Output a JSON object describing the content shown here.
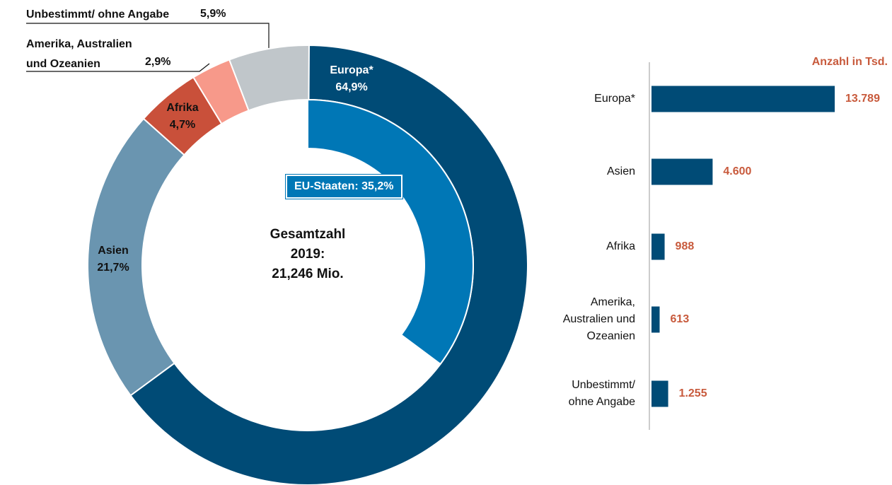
{
  "chart_data": [
    {
      "type": "pie",
      "categories": [
        "Europa*",
        "Asien",
        "Afrika",
        "Amerika, Australien\nund Ozeanien",
        "Unbestimmt/ ohne Angabe"
      ],
      "values": [
        64.9,
        21.7,
        4.7,
        2.9,
        5.9
      ],
      "value_labels": [
        "64,9%",
        "21,7%",
        "4,7%",
        "2,9%",
        "5,9%"
      ],
      "colors": [
        "#004b76",
        "#6a95b0",
        "#c9503a",
        "#f7998a",
        "#c0c6ca"
      ],
      "inner_series": {
        "values": [
          35.2
        ],
        "value_labels": [
          "EU-Staaten: 35,2%"
        ],
        "color": "#0077b6"
      },
      "center_label": [
        "Gesamtzahl",
        "2019:",
        "21,246 Mio."
      ]
    },
    {
      "type": "bar",
      "orientation": "horizontal",
      "axis_label": "Anzahl in Tsd.",
      "categories": [
        "Europa*",
        "Asien",
        "Afrika",
        "Amerika,\nAustralien und\nOzeanien",
        "Unbestimmt/\nohne Angabe"
      ],
      "values": [
        13789,
        4600,
        988,
        613,
        1255
      ],
      "value_labels": [
        "13.789",
        "4.600",
        "988",
        "613",
        "1.255"
      ],
      "color": "#004b76",
      "label_color": "#c85a3c",
      "xlim": [
        0,
        14000
      ]
    }
  ]
}
